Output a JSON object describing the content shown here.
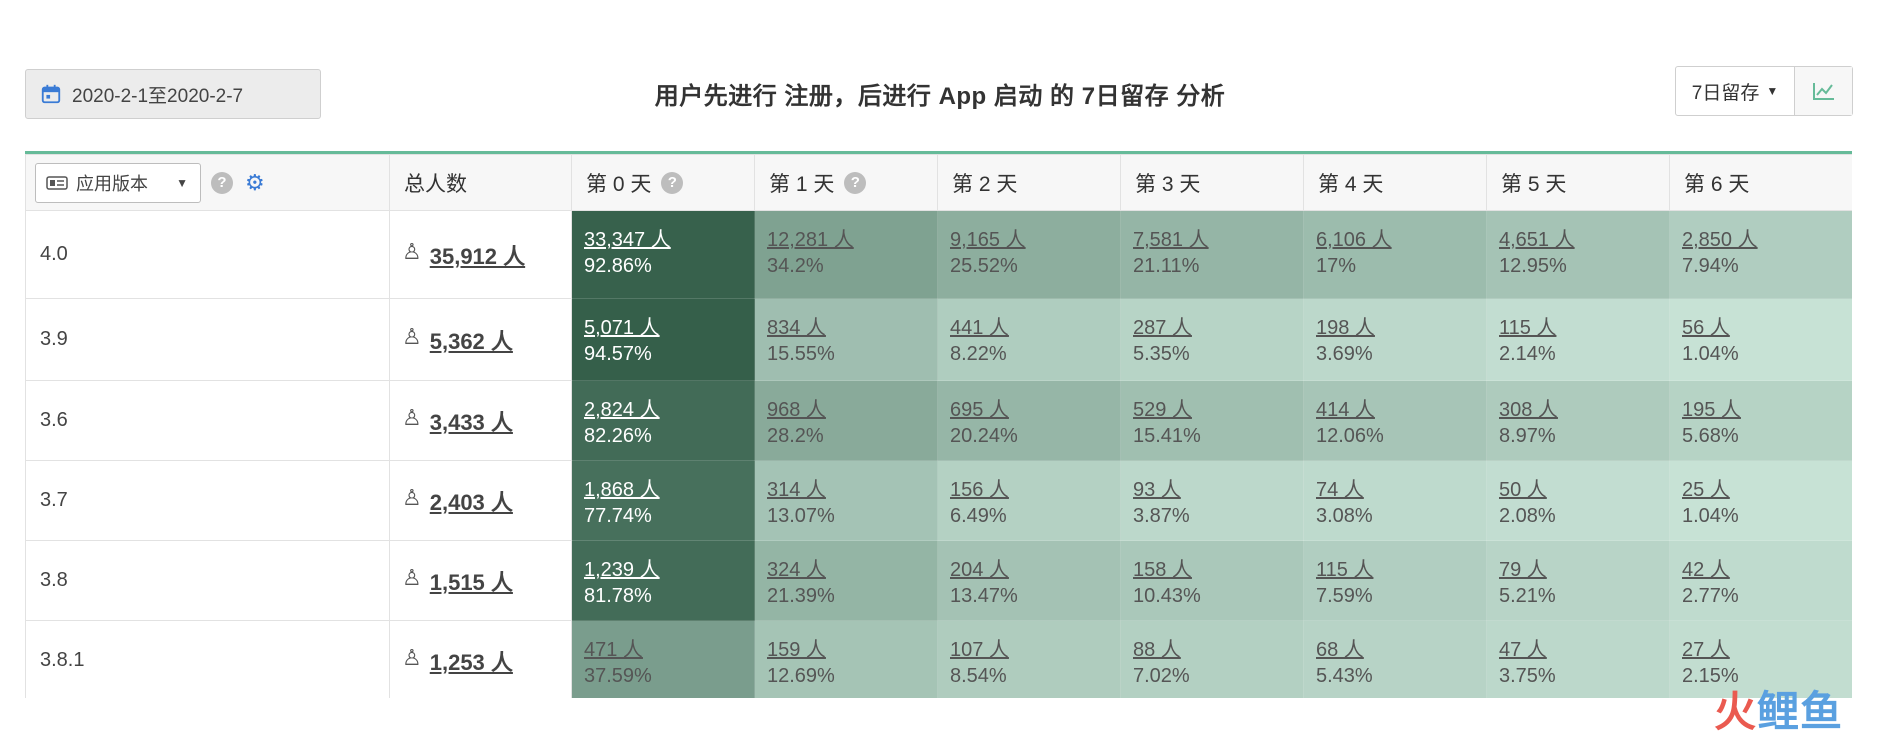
{
  "header": {
    "date_range": "2020-2-1至2020-2-7",
    "title": "用户先进行 注册，后进行 App 启动 的 7日留存 分析",
    "retention_type": "7日留存"
  },
  "table": {
    "group_by_label": "应用版本",
    "columns": [
      "总人数",
      "第 0 天",
      "第 1 天",
      "第 2 天",
      "第 3 天",
      "第 4 天",
      "第 5 天",
      "第 6 天"
    ],
    "rows": [
      {
        "version": "4.0",
        "total": "35,912 人",
        "cells": [
          {
            "count": "33,347 人",
            "pct": "92.86%"
          },
          {
            "count": "12,281 人",
            "pct": "34.2%"
          },
          {
            "count": "9,165 人",
            "pct": "25.52%"
          },
          {
            "count": "7,581 人",
            "pct": "21.11%"
          },
          {
            "count": "6,106 人",
            "pct": "17%"
          },
          {
            "count": "4,651 人",
            "pct": "12.95%"
          },
          {
            "count": "2,850 人",
            "pct": "7.94%"
          }
        ]
      },
      {
        "version": "3.9",
        "total": "5,362 人",
        "cells": [
          {
            "count": "5,071 人",
            "pct": "94.57%"
          },
          {
            "count": "834 人",
            "pct": "15.55%"
          },
          {
            "count": "441 人",
            "pct": "8.22%"
          },
          {
            "count": "287 人",
            "pct": "5.35%"
          },
          {
            "count": "198 人",
            "pct": "3.69%"
          },
          {
            "count": "115 人",
            "pct": "2.14%"
          },
          {
            "count": "56 人",
            "pct": "1.04%"
          }
        ]
      },
      {
        "version": "3.6",
        "total": "3,433 人",
        "cells": [
          {
            "count": "2,824 人",
            "pct": "82.26%"
          },
          {
            "count": "968 人",
            "pct": "28.2%"
          },
          {
            "count": "695 人",
            "pct": "20.24%"
          },
          {
            "count": "529 人",
            "pct": "15.41%"
          },
          {
            "count": "414 人",
            "pct": "12.06%"
          },
          {
            "count": "308 人",
            "pct": "8.97%"
          },
          {
            "count": "195 人",
            "pct": "5.68%"
          }
        ]
      },
      {
        "version": "3.7",
        "total": "2,403 人",
        "cells": [
          {
            "count": "1,868 人",
            "pct": "77.74%"
          },
          {
            "count": "314 人",
            "pct": "13.07%"
          },
          {
            "count": "156 人",
            "pct": "6.49%"
          },
          {
            "count": "93 人",
            "pct": "3.87%"
          },
          {
            "count": "74 人",
            "pct": "3.08%"
          },
          {
            "count": "50 人",
            "pct": "2.08%"
          },
          {
            "count": "25 人",
            "pct": "1.04%"
          }
        ]
      },
      {
        "version": "3.8",
        "total": "1,515 人",
        "cells": [
          {
            "count": "1,239 人",
            "pct": "81.78%"
          },
          {
            "count": "324 人",
            "pct": "21.39%"
          },
          {
            "count": "204 人",
            "pct": "13.47%"
          },
          {
            "count": "158 人",
            "pct": "10.43%"
          },
          {
            "count": "115 人",
            "pct": "7.59%"
          },
          {
            "count": "79 人",
            "pct": "5.21%"
          },
          {
            "count": "42 人",
            "pct": "2.77%"
          }
        ]
      },
      {
        "version": "3.8.1",
        "total": "1,253 人",
        "cells": [
          {
            "count": "471 人",
            "pct": "37.59%"
          },
          {
            "count": "159 人",
            "pct": "12.69%"
          },
          {
            "count": "107 人",
            "pct": "8.54%"
          },
          {
            "count": "88 人",
            "pct": "7.02%"
          },
          {
            "count": "68 人",
            "pct": "5.43%"
          },
          {
            "count": "47 人",
            "pct": "3.75%"
          },
          {
            "count": "27 人",
            "pct": "2.15%"
          }
        ]
      }
    ]
  },
  "colors": {
    "accent": "#66bb99",
    "heat_dark": "#2f5a45",
    "heat_light": "#cfe9dd",
    "gear": "#3a7bd5"
  },
  "icons": {
    "date": "calendar-icon",
    "help": "question-icon",
    "settings": "gear-icon",
    "user": "user-icon",
    "chart": "line-chart-icon"
  },
  "watermark": "火鲤鱼"
}
